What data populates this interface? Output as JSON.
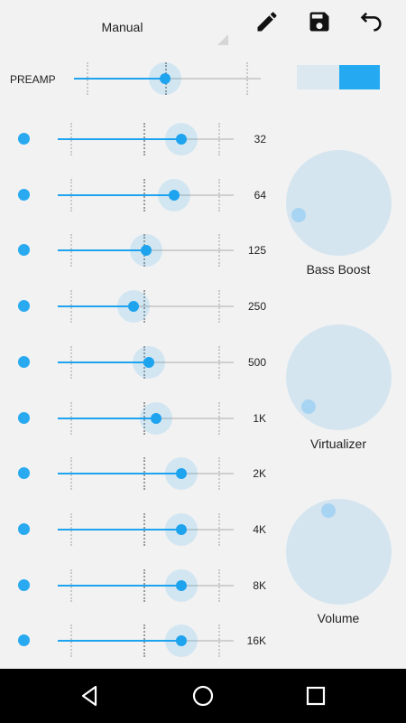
{
  "preset": {
    "label": "Manual"
  },
  "toolbar": {
    "edit_icon": "pencil-icon",
    "save_icon": "save-icon",
    "undo_icon": "undo-icon"
  },
  "preamp": {
    "label": "PREAMP",
    "value": 0.49
  },
  "toggle": {
    "state": "on"
  },
  "bands": [
    {
      "label": "32",
      "value": 0.7
    },
    {
      "label": "64",
      "value": 0.66
    },
    {
      "label": "125",
      "value": 0.5
    },
    {
      "label": "250",
      "value": 0.43
    },
    {
      "label": "500",
      "value": 0.52
    },
    {
      "label": "1K",
      "value": 0.56
    },
    {
      "label": "2K",
      "value": 0.7
    },
    {
      "label": "4K",
      "value": 0.7
    },
    {
      "label": "8K",
      "value": 0.7
    },
    {
      "label": "16K",
      "value": 0.7
    }
  ],
  "knobs": [
    {
      "label": "Bass Boost",
      "value": 0.1
    },
    {
      "label": "Virtualizer",
      "value": 0.0
    },
    {
      "label": "Volume",
      "value": 0.45
    }
  ],
  "colors": {
    "accent": "#1ea3ef",
    "knob": "#d5e5ef",
    "background": "#f2f2f2"
  },
  "navbar": {
    "back_icon": "back-icon",
    "home_icon": "home-icon",
    "recents_icon": "recents-icon"
  }
}
